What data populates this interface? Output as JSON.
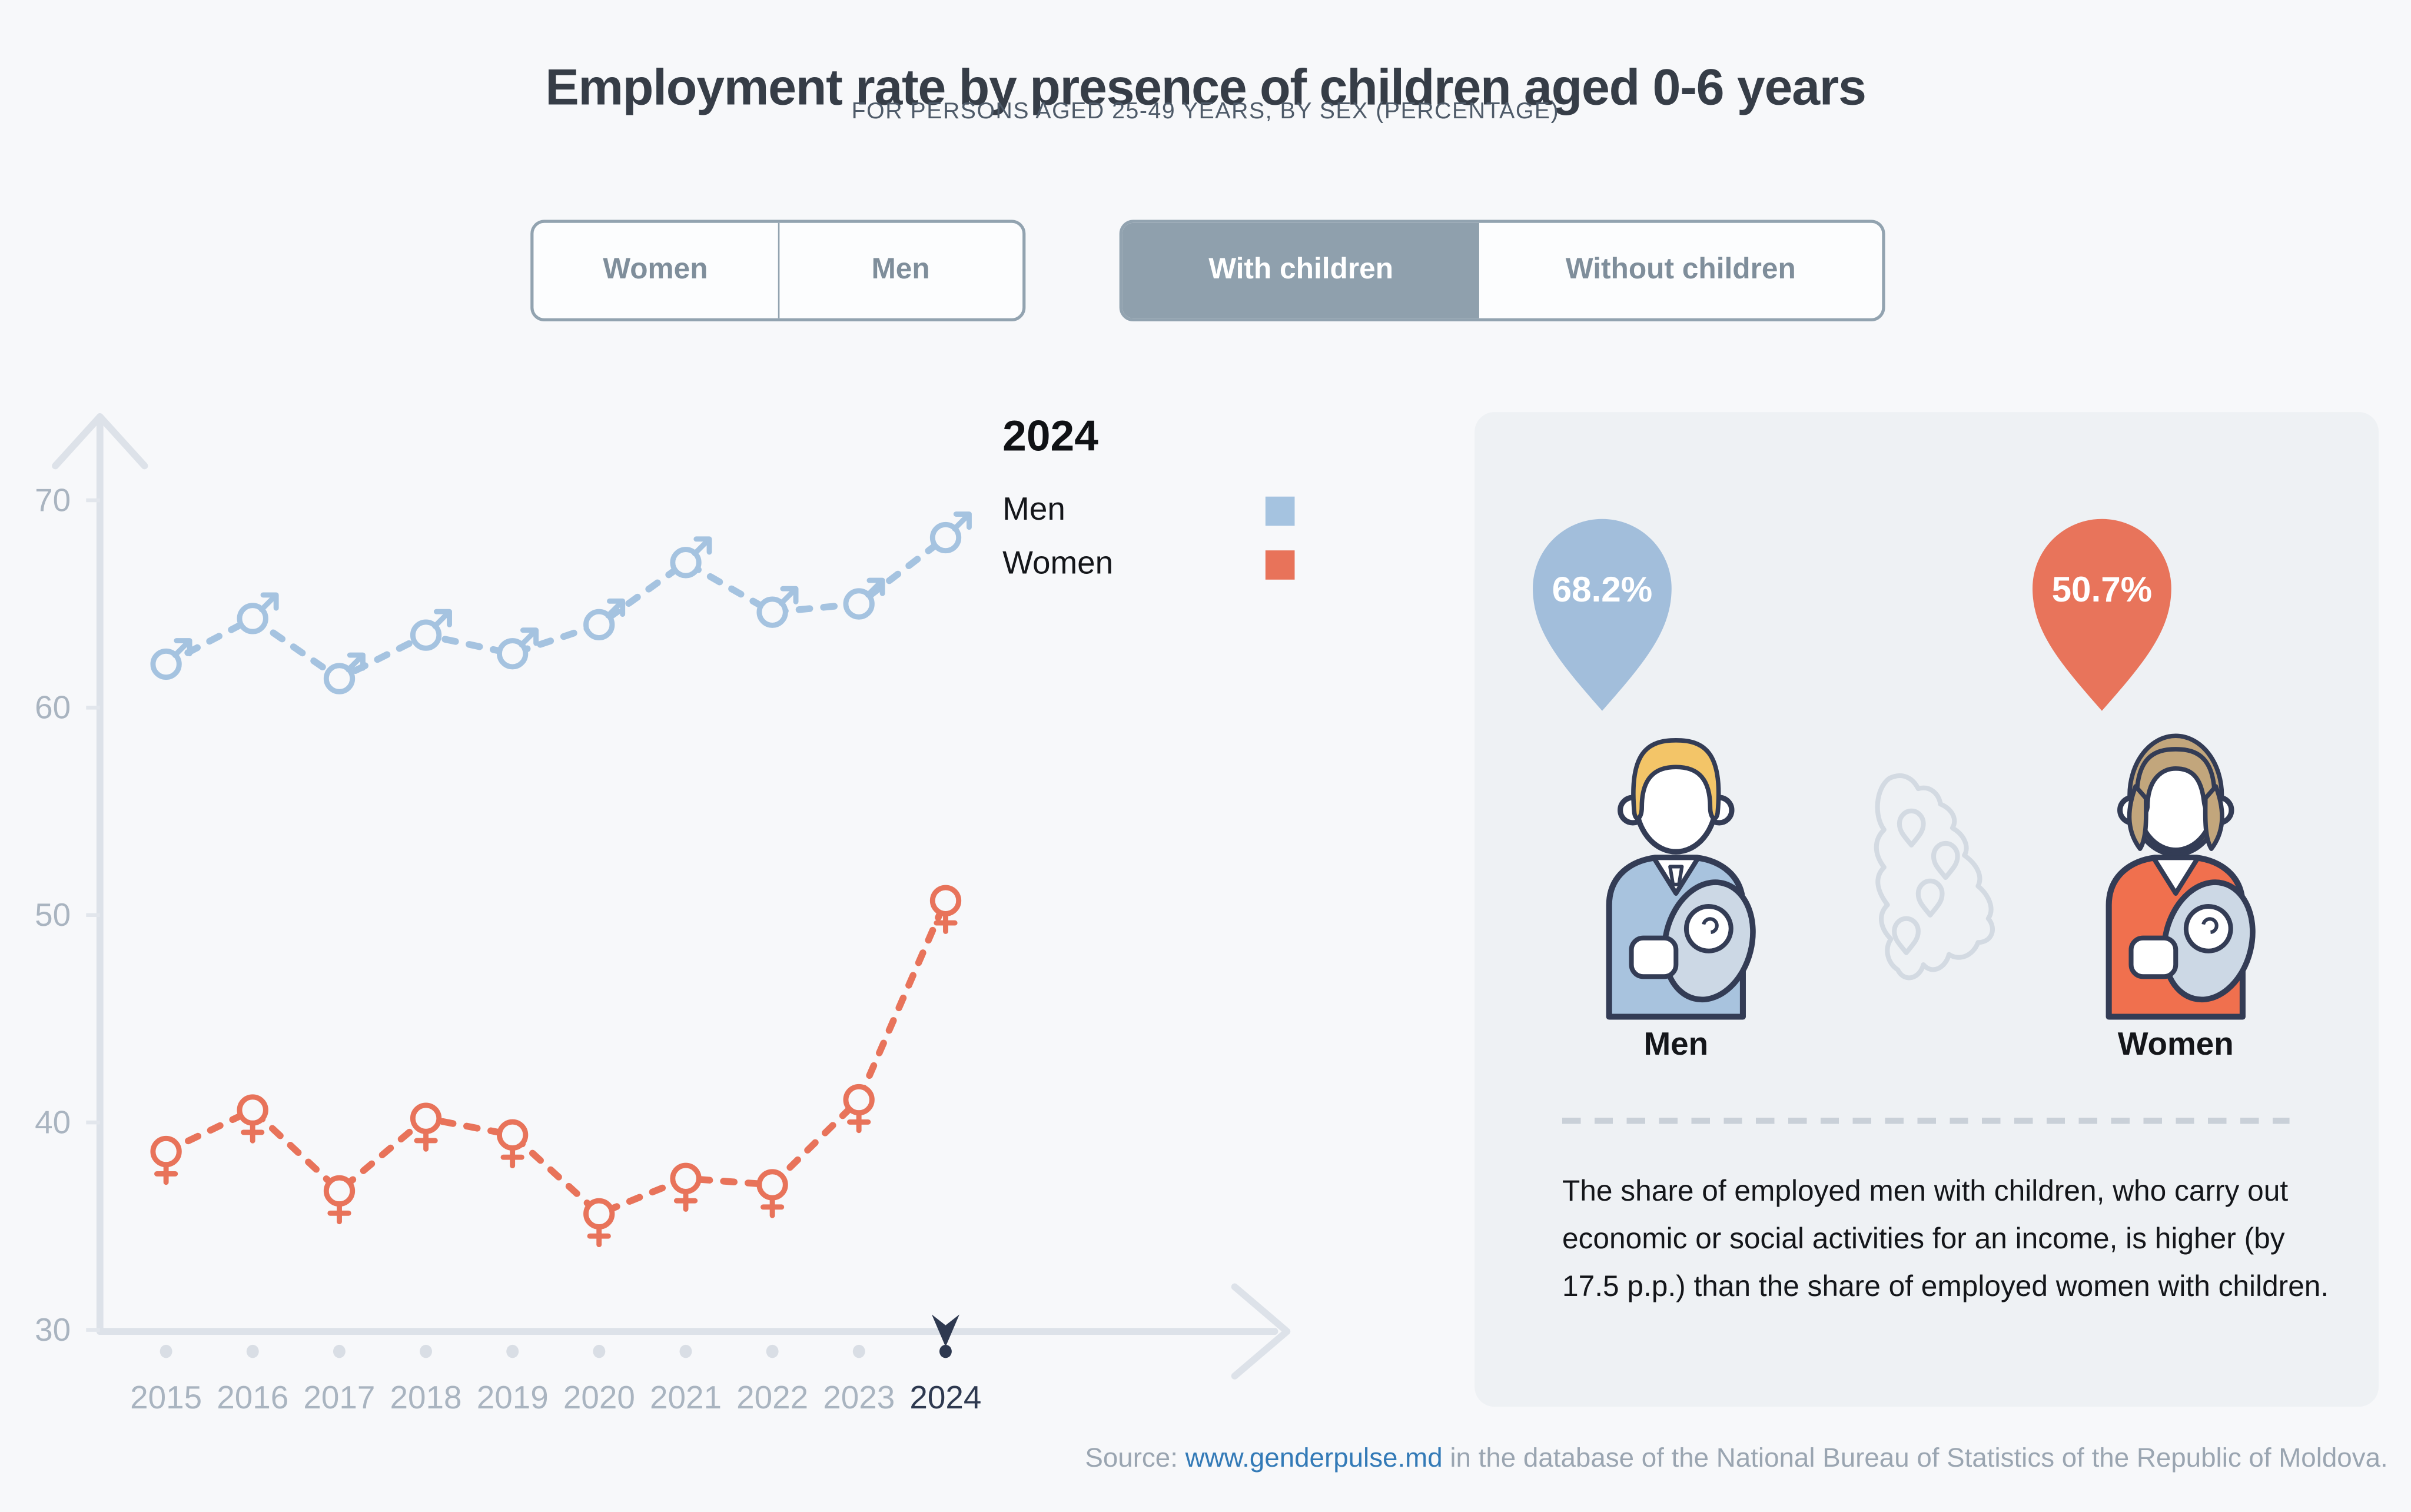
{
  "page": {
    "title": "Employment rate by presence of children aged 0-6 years",
    "subtitle": "FOR PERSONS AGED 25-49 YEARS, BY SEX (PERCENTAGE)",
    "source_prefix": "Source: ",
    "source_link": "www.genderpulse.md",
    "source_suffix": " in the database of the National Bureau of Statistics of the Republic of Moldova."
  },
  "toggles": {
    "sex": {
      "options": [
        "Women",
        "Men"
      ],
      "selected": null
    },
    "children": {
      "options": [
        "With children",
        "Without children"
      ],
      "selected": "With children"
    }
  },
  "legend": {
    "year": "2024",
    "items": [
      {
        "label": "Men",
        "color": "#a5c3e0"
      },
      {
        "label": "Women",
        "color": "#e8735a"
      }
    ]
  },
  "chart_data": {
    "type": "line",
    "x": [
      2015,
      2016,
      2017,
      2018,
      2019,
      2020,
      2021,
      2022,
      2023,
      2024
    ],
    "series": [
      {
        "name": "Men",
        "color": "#a5c3e0",
        "marker": "male-symbol",
        "values": [
          62.1,
          64.3,
          61.4,
          63.5,
          62.6,
          64.0,
          67.0,
          64.6,
          65.0,
          68.2
        ]
      },
      {
        "name": "Women",
        "color": "#e8735a",
        "marker": "female-symbol",
        "values": [
          38.6,
          40.6,
          36.7,
          40.2,
          39.4,
          35.6,
          37.3,
          37.0,
          41.1,
          50.7
        ]
      }
    ],
    "ylim": [
      30,
      70
    ],
    "yticks": [
      30,
      40,
      50,
      60,
      70
    ],
    "selected_year": 2024,
    "line_style": "dashed",
    "grid": false,
    "legend_position": "top-right",
    "title": "Employment rate by presence of children aged 0-6 years",
    "xlabel": "",
    "ylabel": ""
  },
  "panel": {
    "men_value": "68.2%",
    "women_value": "50.7%",
    "men_label": "Men",
    "women_label": "Women",
    "description": "The share of employed men with children, who carry out economic or social activities for an income, is higher (by 17.5 p.p.) than the share of employed women with children."
  },
  "icons": {
    "men_pin": "map-pin-balloon",
    "women_pin": "map-pin-balloon",
    "men_figure": "father-holding-baby",
    "women_figure": "mother-holding-baby",
    "map": "moldova-outline",
    "year_cursor": "down-arrow-cursor"
  },
  "colors": {
    "bg": "#f7f8fa",
    "panel": "#eef1f4",
    "title_text": "#363d47",
    "subtitle_text": "#4e5a68",
    "axis": "#dde2e9",
    "tick_label": "#a9b4c0",
    "year_selected": "#2e3950",
    "men": "#a5c3e0",
    "women": "#e8735a",
    "pin_men": "#a2bedb",
    "pin_women": "#e8745b",
    "toggle_border": "#92a3b0",
    "toggle_selected_bg": "#8fa0ad",
    "toggle_text": "#7f8e9b",
    "toggle_selected_text": "#ffffff",
    "link": "#337ab7",
    "footer_text": "#9aa5b1",
    "text_dark": "#14161a",
    "legend_text": "#101215",
    "outline": "#333c55",
    "hair_man": "#f3c568",
    "hair_woman": "#c2a67c",
    "suit_man": "#a8c3de",
    "jacket_woman": "#f0704e",
    "baby_wrap": "#ccd8e5",
    "map_outline": "#d3dae2",
    "dot": "#d9dee5",
    "divider": "#c9d0d8"
  }
}
